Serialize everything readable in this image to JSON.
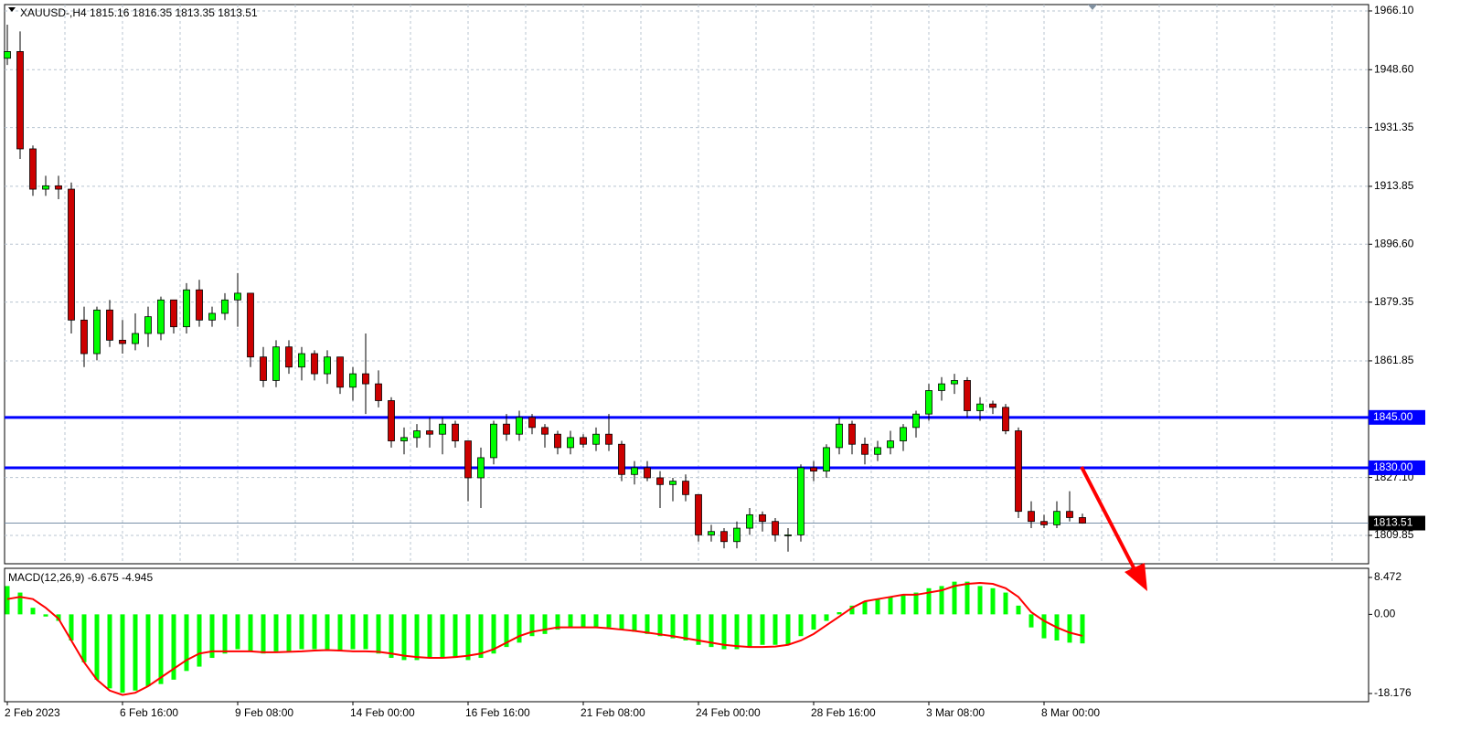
{
  "chart_data": [
    {
      "type": "candlestick",
      "title": "XAUUSD-,H4",
      "categories": [
        "2 Feb 2023",
        null,
        null,
        null,
        null,
        null,
        null,
        null,
        null,
        "6 Feb 16:00",
        null,
        null,
        null,
        null,
        null,
        null,
        null,
        null,
        "9 Feb 08:00",
        null,
        null,
        null,
        null,
        null,
        null,
        null,
        null,
        "14 Feb 00:00",
        null,
        null,
        null,
        null,
        null,
        null,
        null,
        null,
        "16 Feb 16:00",
        null,
        null,
        null,
        null,
        null,
        null,
        null,
        null,
        "21 Feb 08:00",
        null,
        null,
        null,
        null,
        null,
        null,
        null,
        null,
        "24 Feb 00:00",
        null,
        null,
        null,
        null,
        null,
        null,
        null,
        null,
        "28 Feb 16:00",
        null,
        null,
        null,
        null,
        null,
        null,
        null,
        null,
        "3 Mar 08:00",
        null,
        null,
        null,
        null,
        null,
        null,
        null,
        null,
        "8 Mar 00:00",
        null,
        null,
        null
      ],
      "open": [
        1952,
        1954,
        1925,
        1913,
        1914,
        1913,
        1874,
        1864,
        1877,
        1868,
        1867,
        1870,
        1870,
        1880,
        1872,
        1883,
        1874,
        1876,
        1880,
        1882,
        1863,
        1856,
        1866,
        1860,
        1864,
        1858,
        1863,
        1854,
        1858,
        1855,
        1850,
        1838,
        1839,
        1841,
        1840,
        1843,
        1838,
        1827,
        1833,
        1843,
        1840,
        1845,
        1842,
        1840,
        1836,
        1839,
        1837,
        1840,
        1837,
        1828,
        1830,
        1827,
        1825,
        1826,
        1822,
        1810,
        1811,
        1808,
        1812,
        1816,
        1814,
        1810,
        1810,
        1830,
        1829,
        1836,
        1843,
        1837,
        1834,
        1836,
        1838,
        1842,
        1846,
        1853,
        1855,
        1856,
        1847,
        1849,
        1848,
        1841,
        1817,
        1814,
        1813,
        1817,
        1815.16
      ],
      "high": [
        1962,
        1960,
        1926,
        1917,
        1917,
        1915,
        1878,
        1878,
        1880,
        1874,
        1876,
        1878,
        1881,
        1880,
        1885,
        1886,
        1878,
        1882,
        1888,
        1882,
        1866,
        1868,
        1868,
        1866,
        1865,
        1865,
        1863,
        1860,
        1870,
        1859,
        1851,
        1842,
        1843,
        1845,
        1845,
        1844,
        1838,
        1836,
        1844,
        1846,
        1847,
        1846,
        1843,
        1841,
        1841,
        1840,
        1842,
        1846,
        1838,
        1832,
        1832,
        1829,
        1827,
        1828,
        1822,
        1813,
        1812,
        1814,
        1818,
        1817,
        1815,
        1812,
        1831,
        1832,
        1837,
        1845,
        1844,
        1839,
        1838,
        1841,
        1843,
        1847,
        1855,
        1857,
        1858,
        1857,
        1851,
        1850,
        1849,
        1842,
        1820,
        1816,
        1820,
        1823,
        1816.35
      ],
      "low": [
        1950,
        1922,
        1911,
        1911,
        1910,
        1870,
        1860,
        1862,
        1866,
        1864,
        1865,
        1866,
        1868,
        1870,
        1870,
        1872,
        1872,
        1874,
        1872,
        1860,
        1854,
        1854,
        1858,
        1856,
        1856,
        1855,
        1852,
        1850,
        1846,
        1848,
        1836,
        1834,
        1836,
        1836,
        1834,
        1836,
        1820,
        1818,
        1831,
        1838,
        1838,
        1840,
        1836,
        1834,
        1834,
        1836,
        1835,
        1835,
        1826,
        1825,
        1826,
        1818,
        1820,
        1820,
        1808,
        1808,
        1806,
        1806,
        1810,
        1811,
        1808,
        1805,
        1808,
        1826,
        1827,
        1834,
        1834,
        1831,
        1832,
        1834,
        1835,
        1839,
        1844,
        1850,
        1852,
        1845,
        1844,
        1846,
        1840,
        1815,
        1812,
        1812,
        1812,
        1814,
        1813.35
      ],
      "close": [
        1954,
        1925,
        1913,
        1914,
        1913,
        1874,
        1864,
        1877,
        1868,
        1867,
        1870,
        1875,
        1880,
        1872,
        1883,
        1874,
        1876,
        1880,
        1882,
        1863,
        1856,
        1866,
        1860,
        1864,
        1858,
        1863,
        1854,
        1858,
        1855,
        1850,
        1838,
        1839,
        1841,
        1840,
        1843,
        1838,
        1827,
        1833,
        1843,
        1840,
        1845,
        1842,
        1840,
        1836,
        1839,
        1837,
        1840,
        1837,
        1828,
        1830,
        1827,
        1825,
        1826,
        1822,
        1810,
        1811,
        1808,
        1812,
        1816,
        1814,
        1810,
        1810,
        1830,
        1829,
        1836,
        1843,
        1837,
        1834,
        1836,
        1838,
        1842,
        1846,
        1853,
        1855,
        1856,
        1847,
        1849,
        1848,
        1841,
        1817,
        1814,
        1813,
        1817,
        1815.16,
        1813.51
      ],
      "up_color": "#00ff00",
      "down_color": "#cc0000",
      "ylim": [
        1801.4,
        1968.0
      ],
      "yticks": [
        {
          "value": 1966.1,
          "label": "1966.10"
        },
        {
          "value": 1948.6,
          "label": "1948.60"
        },
        1931.35,
        1913.85,
        {
          "value": 1896.6,
          "label": "1896.60"
        },
        1879.35,
        1861.85,
        {
          "value": 1827.1,
          "label": "1827.10"
        },
        1809.85
      ],
      "hlines": [
        {
          "value": 1845,
          "label": "1845.00",
          "color": "#0000ff"
        },
        {
          "value": 1830,
          "label": "1830.00",
          "color": "#0000ff"
        }
      ],
      "grid": true
    },
    {
      "type": "macd",
      "title": "MACD(12,26,9)",
      "values": [
        6.5,
        5,
        1.5,
        -0.5,
        -1.5,
        -6,
        -11,
        -15,
        -17,
        -18,
        -17.5,
        -16.5,
        -16,
        -15,
        -13,
        -12,
        -10,
        -9,
        -8,
        -8.5,
        -9,
        -8.5,
        -8.5,
        -8,
        -8,
        -8,
        -8.5,
        -8,
        -8,
        -9,
        -10,
        -10.5,
        -10.5,
        -10,
        -10,
        -10,
        -10.5,
        -10,
        -9,
        -7.5,
        -6.5,
        -5,
        -4.5,
        -3.5,
        -3,
        -3,
        -3,
        -3,
        -3.5,
        -4,
        -4.5,
        -5,
        -5.5,
        -6,
        -7,
        -7.5,
        -8,
        -8,
        -7.5,
        -7,
        -7,
        -7,
        -5,
        -3.5,
        -1.5,
        0.5,
        2,
        3,
        3.5,
        4,
        4.5,
        5,
        6,
        6.5,
        7.5,
        7.5,
        6.5,
        6,
        5,
        2,
        -3,
        -5.5,
        -6,
        -6.5,
        -6.675
      ],
      "color": "#00ff00",
      "signal": [
        3.5,
        4,
        3.5,
        1.5,
        -1,
        -6,
        -11,
        -15,
        -17.5,
        -18.5,
        -18,
        -16.5,
        -14.5,
        -12.5,
        -10.5,
        -9,
        -8.5,
        -8.5,
        -8.5,
        -8.5,
        -8.7,
        -8.7,
        -8.6,
        -8.5,
        -8.3,
        -8.2,
        -8.3,
        -8.5,
        -8.5,
        -8.6,
        -9,
        -9.5,
        -9.8,
        -10,
        -10,
        -9.8,
        -9.5,
        -9,
        -8,
        -6.5,
        -5,
        -4,
        -3.5,
        -3,
        -3,
        -3,
        -3,
        -3.2,
        -3.5,
        -3.8,
        -4.2,
        -4.6,
        -5,
        -5.5,
        -6,
        -6.5,
        -7,
        -7.3,
        -7.5,
        -7.5,
        -7.4,
        -7,
        -6,
        -4.5,
        -2.5,
        -0.5,
        1.5,
        3,
        3.5,
        4,
        4.5,
        4.5,
        5,
        5.5,
        6.5,
        7,
        7.2,
        7,
        6,
        4,
        0.5,
        -1.5,
        -3,
        -4.2,
        -4.945
      ],
      "signal_color": "#ff0000",
      "ylim": [
        -20.06,
        10.57
      ],
      "yticks": [
        8.472,
        {
          "value": 0,
          "label": "0.00"
        },
        -18.176
      ]
    }
  ]
}
